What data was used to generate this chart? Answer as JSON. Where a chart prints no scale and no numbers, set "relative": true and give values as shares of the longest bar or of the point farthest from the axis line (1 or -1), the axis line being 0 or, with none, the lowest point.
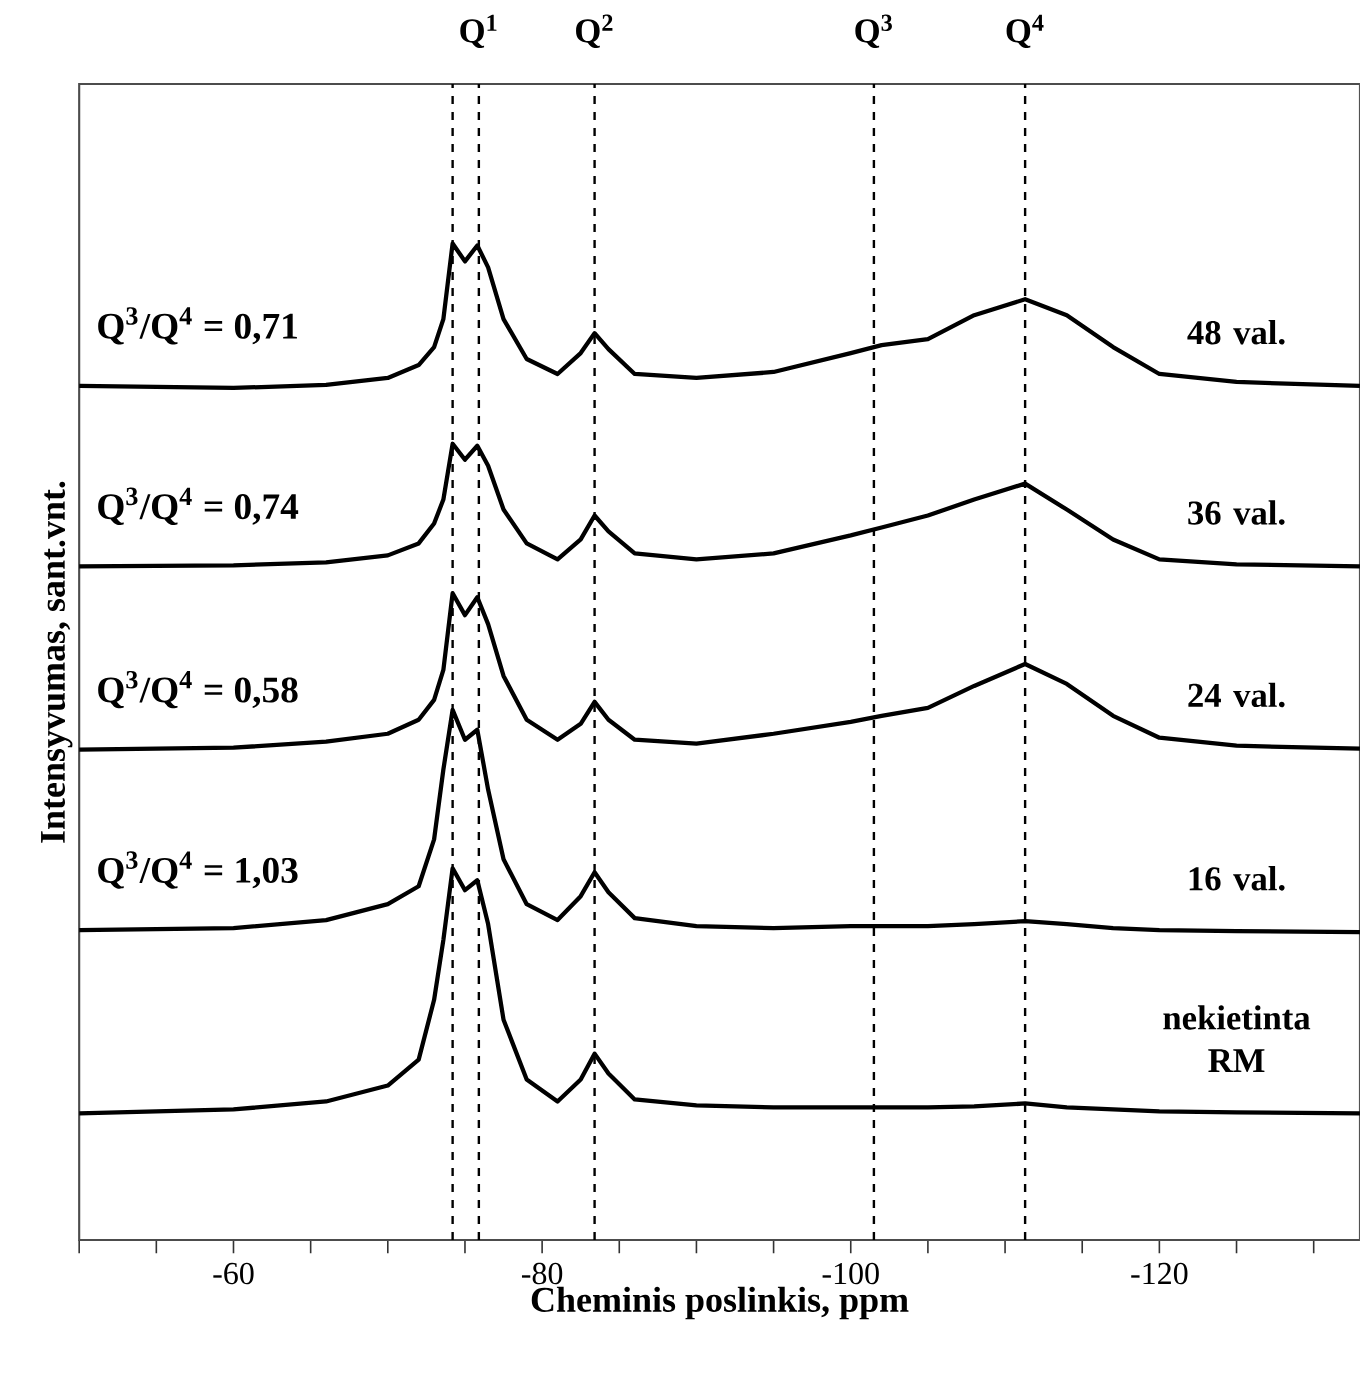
{
  "chart_data": {
    "type": "line",
    "relative": true,
    "xlabel": "Cheminis poslinkis, ppm",
    "ylabel": "Intensyvumas, sant.vnt.",
    "x": [
      -50,
      -60,
      -66,
      -70,
      -72,
      -73,
      -73.6,
      -74.2,
      -75,
      -75.8,
      -76.5,
      -77.5,
      -79,
      -81,
      -82.5,
      -83.4,
      -84.3,
      -86,
      -90,
      -95,
      -100,
      -102,
      -105,
      -108,
      -111.3,
      -114,
      -117,
      -120,
      -125,
      -133
    ],
    "xlim": [
      -50,
      -133
    ],
    "xticks": [
      {
        "value": -50,
        "label": null
      },
      {
        "value": -55,
        "label": null
      },
      -60,
      {
        "value": -65,
        "label": null
      },
      {
        "value": -70,
        "label": null
      },
      {
        "value": -75,
        "label": null
      },
      -80,
      {
        "value": -85,
        "label": null
      },
      {
        "value": -90,
        "label": null
      },
      {
        "value": -95,
        "label": null
      },
      -100,
      {
        "value": -105,
        "label": null
      },
      {
        "value": -110,
        "label": null
      },
      {
        "value": -115,
        "label": null
      },
      -120,
      {
        "value": -125,
        "label": null
      },
      {
        "value": -130,
        "label": null
      }
    ],
    "series": [
      {
        "name": "48 val.",
        "color": "#000000",
        "values": [
          0.857,
          0.855,
          0.858,
          0.865,
          0.878,
          0.896,
          0.924,
          1.0,
          0.982,
          0.998,
          0.976,
          0.924,
          0.884,
          0.869,
          0.89,
          0.91,
          0.894,
          0.869,
          0.865,
          0.871,
          0.89,
          0.898,
          0.904,
          0.928,
          0.944,
          0.928,
          0.896,
          0.869,
          0.861,
          0.857
        ]
      },
      {
        "name": "36 val.",
        "color": "#000000",
        "values": [
          0.676,
          0.677,
          0.68,
          0.687,
          0.699,
          0.719,
          0.743,
          0.799,
          0.783,
          0.797,
          0.777,
          0.733,
          0.699,
          0.683,
          0.703,
          0.727,
          0.711,
          0.689,
          0.683,
          0.689,
          0.707,
          0.715,
          0.727,
          0.743,
          0.759,
          0.733,
          0.703,
          0.683,
          0.678,
          0.676
        ]
      },
      {
        "name": "24 val.",
        "color": "#000000",
        "values": [
          0.492,
          0.494,
          0.5,
          0.508,
          0.522,
          0.542,
          0.572,
          0.649,
          0.627,
          0.645,
          0.618,
          0.566,
          0.522,
          0.502,
          0.518,
          0.54,
          0.522,
          0.502,
          0.498,
          0.508,
          0.52,
          0.526,
          0.534,
          0.556,
          0.578,
          0.558,
          0.526,
          0.504,
          0.496,
          0.493
        ]
      },
      {
        "name": "16 val.",
        "color": "#000000",
        "values": [
          0.311,
          0.313,
          0.321,
          0.337,
          0.355,
          0.402,
          0.472,
          0.532,
          0.502,
          0.512,
          0.452,
          0.382,
          0.337,
          0.321,
          0.345,
          0.369,
          0.349,
          0.323,
          0.315,
          0.313,
          0.315,
          0.315,
          0.315,
          0.317,
          0.32,
          0.317,
          0.313,
          0.311,
          0.31,
          0.309
        ]
      },
      {
        "name": "nekietinta RM",
        "color": "#000000",
        "values": [
          0.127,
          0.131,
          0.139,
          0.155,
          0.181,
          0.241,
          0.301,
          0.373,
          0.351,
          0.361,
          0.317,
          0.221,
          0.161,
          0.139,
          0.161,
          0.187,
          0.167,
          0.141,
          0.135,
          0.133,
          0.133,
          0.133,
          0.133,
          0.134,
          0.137,
          0.133,
          0.131,
          0.129,
          0.128,
          0.127
        ]
      }
    ],
    "annotations": [
      "Q$^{3}$/Q$^{4}$ = 0,71",
      "Q$^{3}$/Q$^{4}$ = 0,74",
      "Q$^{3}$/Q$^{4}$ = 0,58",
      "Q$^{3}$/Q$^{4}$ = 1,03"
    ],
    "ref_lines": [
      {
        "axis": "x",
        "value": -74.2,
        "label": null,
        "color": "#000000",
        "line_style": "dashed"
      },
      {
        "axis": "x",
        "value": -75.9,
        "label": "Q$^{1}$",
        "color": "#000000",
        "line_style": "dashed"
      },
      {
        "axis": "x",
        "value": -83.4,
        "label": "Q$^{2}$",
        "color": "#000000",
        "line_style": "dashed"
      },
      {
        "axis": "x",
        "value": -101.5,
        "label": "Q$^{3}$",
        "color": "#000000",
        "line_style": "dashed"
      },
      {
        "axis": "x",
        "value": -111.3,
        "label": "Q$^{4}$",
        "color": "#000000",
        "line_style": "dashed"
      }
    ]
  }
}
